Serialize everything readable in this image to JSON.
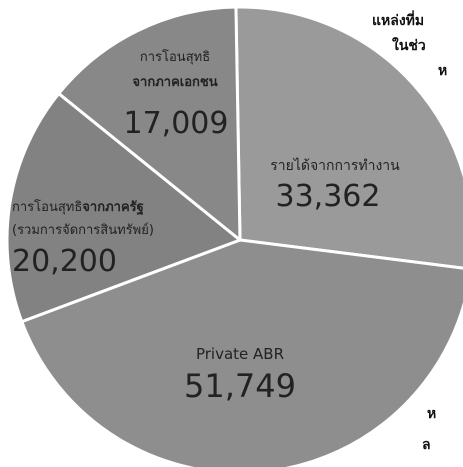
{
  "chart_data": {
    "type": "pie",
    "title": "",
    "slices": [
      {
        "label": "รายได้จากการทำงาน",
        "label_bold": "",
        "sublabel": "",
        "value": 33362,
        "value_text": "33,362"
      },
      {
        "label": "Private ABR",
        "label_bold": "",
        "sublabel": "",
        "value": 51749,
        "value_text": "51,749"
      },
      {
        "label": "การโอนสุทธิ",
        "label_bold": "จากภาครัฐ",
        "sublabel": "(รวมการจัดการสินทรัพย์)",
        "value": 20200,
        "value_text": "20,200"
      },
      {
        "label": "การโอนสุทธิ",
        "label_bold": "จากภาคเอกชน",
        "sublabel": "",
        "value": 17009,
        "value_text": "17,009"
      }
    ],
    "slice_colors": [
      "#9a9a9a",
      "#8e8e8e",
      "#828282",
      "#888888"
    ],
    "edge_color": "#ffffff"
  },
  "side_text": {
    "line1": "แหล่งที่ม",
    "line2": "ในช่ว",
    "line3": "ห",
    "line4": "ห",
    "line5": "ล"
  }
}
